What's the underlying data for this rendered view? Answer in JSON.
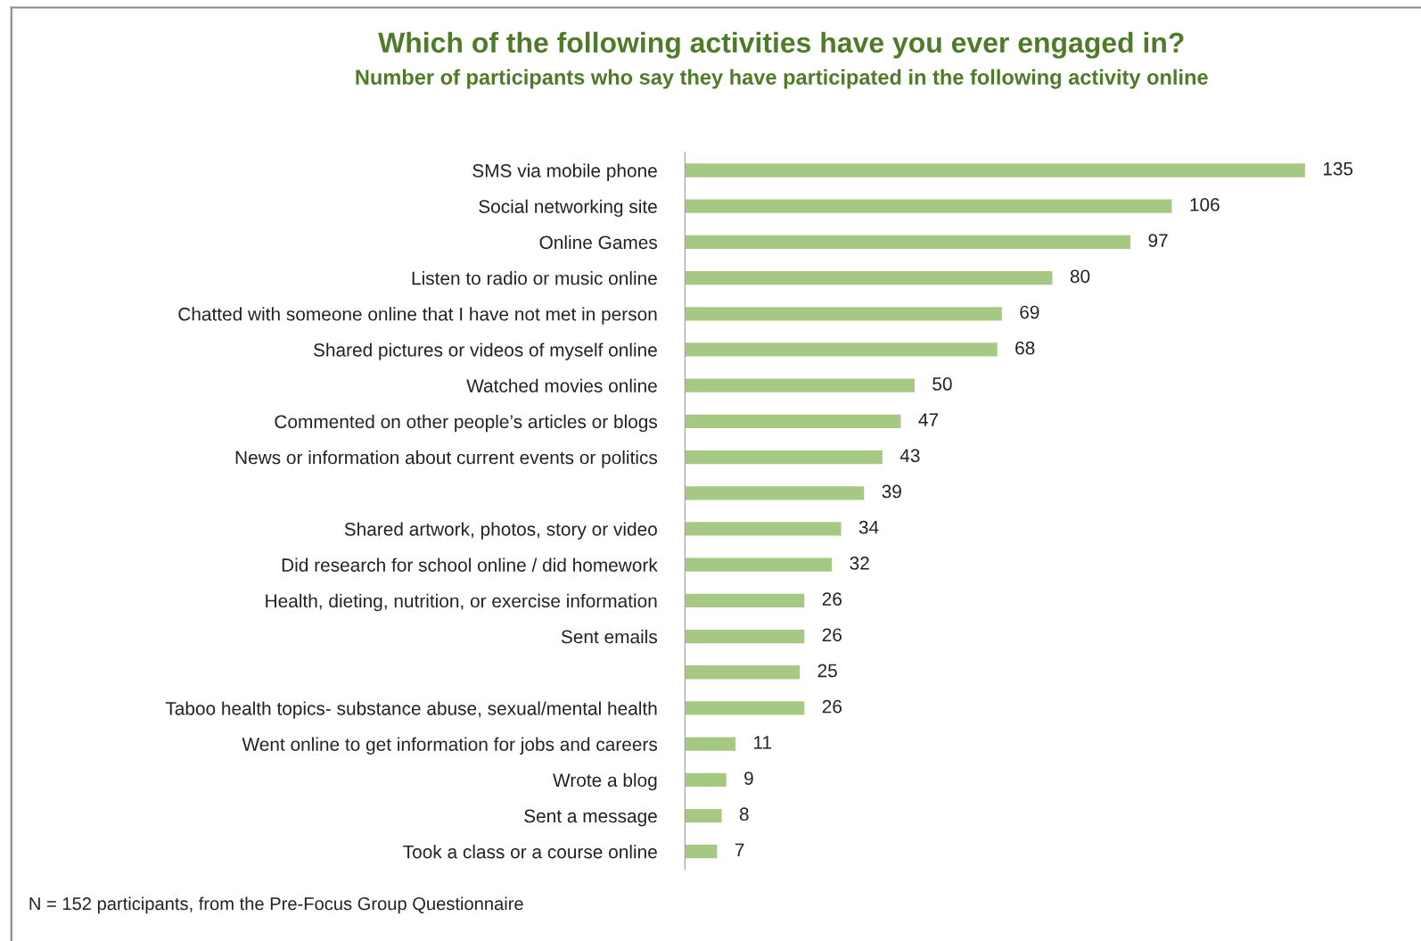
{
  "chart_data": {
    "type": "bar",
    "orientation": "horizontal",
    "title": "Which of the following activities have you ever engaged in?",
    "subtitle": "Number of participants who say they have participated in the following activity online",
    "categories": [
      "SMS via mobile phone",
      "Social networking site",
      "Online Games",
      "Listen to radio or music online",
      "Chatted with someone online that I have not met in person",
      "Shared pictures or videos of myself online",
      "Watched movies online",
      "Commented on other people’s articles or blogs",
      "News or information about current events or politics",
      null,
      "Shared artwork, photos, story or video",
      "Did research for school online / did homework",
      "Health, dieting, nutrition, or exercise information",
      "Sent emails",
      null,
      "Taboo health topics- substance abuse, sexual/mental health",
      "Went online to get information for jobs and careers",
      "Wrote a blog",
      "Sent a message",
      "Took a class or a course online"
    ],
    "values": [
      135,
      106,
      97,
      80,
      69,
      68,
      50,
      47,
      43,
      39,
      34,
      32,
      26,
      26,
      25,
      26,
      11,
      9,
      8,
      7
    ],
    "color": "#a5c882",
    "data_labels": true,
    "grid": false,
    "legend": false,
    "tick_labels": "y",
    "annotations": [
      "N = 152 participants, from the Pre-Focus Group Questionnaire"
    ]
  }
}
